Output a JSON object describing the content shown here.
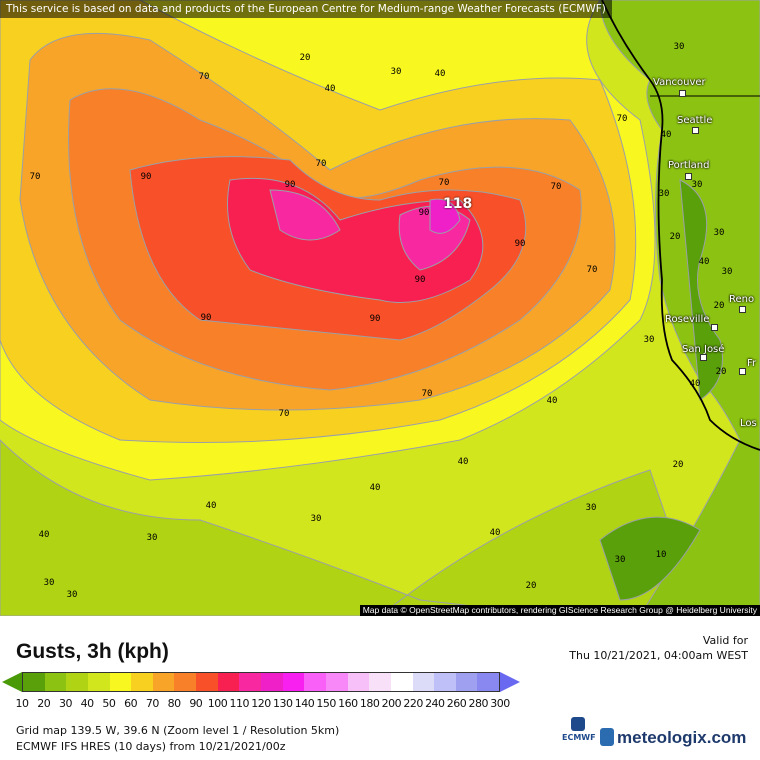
{
  "map": {
    "banner": "This service is based on data and products of the European Centre for Medium-range Weather Forecasts (ECMWF)",
    "attribution": "Map data © OpenStreetMap contributors, rendering GIScience Research Group @ Heidelberg University",
    "max_value": "118",
    "cities": [
      "Vancouver",
      "Seattle",
      "Portland",
      "Reno",
      "Roseville",
      "San José",
      "Fr",
      "Los"
    ],
    "contour_labels": [
      "70",
      "30",
      "40",
      "20",
      "30",
      "70",
      "90",
      "90",
      "70",
      "70",
      "70",
      "70",
      "90",
      "90",
      "90",
      "90",
      "70",
      "70",
      "70",
      "40",
      "40",
      "40",
      "40",
      "40",
      "30",
      "30",
      "30",
      "30",
      "20",
      "40",
      "30",
      "40",
      "30",
      "20",
      "20",
      "30",
      "30",
      "40",
      "30",
      "20",
      "40",
      "10",
      "40",
      "30",
      "30",
      "20",
      "90"
    ]
  },
  "legend": {
    "title": "Gusts, 3h (kph)",
    "valid_label": "Valid for",
    "valid_time": "Thu 10/21/2021, 04:00am WEST",
    "ticks": [
      "10",
      "20",
      "30",
      "40",
      "50",
      "60",
      "70",
      "80",
      "90",
      "100",
      "110",
      "120",
      "130",
      "140",
      "150",
      "160",
      "180",
      "200",
      "220",
      "240",
      "260",
      "280",
      "300"
    ],
    "colors": [
      "#5aa00a",
      "#8cc312",
      "#b0d414",
      "#d2e61e",
      "#f8f820",
      "#f8d020",
      "#f8a428",
      "#f88028",
      "#f85028",
      "#f82050",
      "#f828a0",
      "#f020c8",
      "#f820f0",
      "#f860f8",
      "#f888f8",
      "#f8c0f8",
      "#f8e0f8",
      "#ffffff",
      "#dcdcf8",
      "#c0c0f8",
      "#a0a0f0",
      "#8888f0"
    ],
    "grid_info": "Grid map 139.5 W, 39.6 N (Zoom level 1 / Resolution 5km)",
    "model_info": "ECMWF IFS HRES (10 days) from 10/21/2021/00z",
    "ecmwf_logo": "ECMWF",
    "brand": "meteologix.com"
  }
}
